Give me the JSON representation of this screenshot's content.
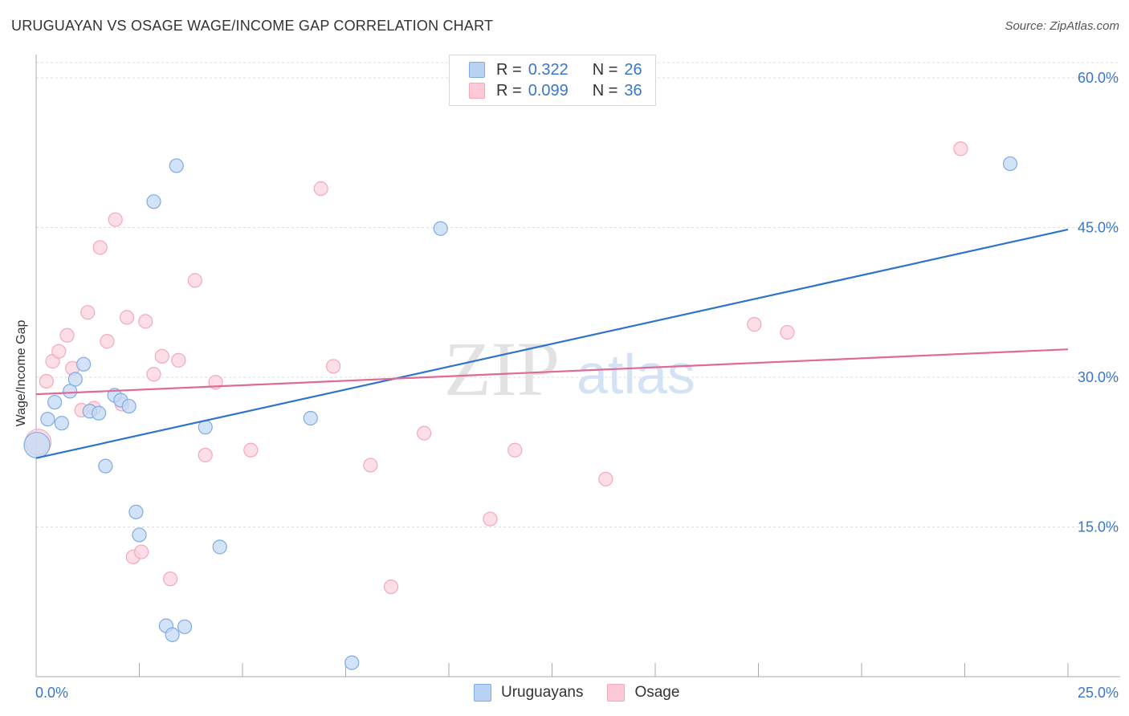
{
  "header": {
    "title": "URUGUAYAN VS OSAGE WAGE/INCOME GAP CORRELATION CHART",
    "source": "Source: ZipAtlas.com"
  },
  "watermark": {
    "zip": "ZIP",
    "atlas": "atlas"
  },
  "legend": {
    "rows": [
      {
        "r_label": "R =",
        "r_value": "0.322",
        "n_label": "N =",
        "n_value": "26",
        "color": "#b8d2f4"
      },
      {
        "r_label": "R =",
        "r_value": "0.099",
        "n_label": "N =",
        "n_value": "36",
        "color": "#fcc9d6"
      }
    ]
  },
  "chart_data": {
    "type": "scatter",
    "title": "URUGUAYAN VS OSAGE WAGE/INCOME GAP CORRELATION CHART",
    "xlabel": "",
    "ylabel": "Wage/Income Gap",
    "xlim": [
      0,
      25
    ],
    "ylim": [
      0,
      60
    ],
    "x_tick_labels": [
      "0.0%",
      "25.0%"
    ],
    "y_ticks": [
      15,
      30,
      45,
      60
    ],
    "y_tick_labels": [
      "15.0%",
      "30.0%",
      "45.0%",
      "60.0%"
    ],
    "grid": true,
    "series": [
      {
        "name": "Uruguayans",
        "color": "#7fabe3",
        "fill": "#c3d9f6",
        "line_color": "#2e73cc",
        "trend": {
          "x": [
            0,
            25
          ],
          "y": [
            21.9,
            44.8
          ]
        },
        "points": [
          {
            "x": 0.02,
            "y": 23.2,
            "big": true
          },
          {
            "x": 0.28,
            "y": 25.8
          },
          {
            "x": 0.45,
            "y": 27.5
          },
          {
            "x": 0.62,
            "y": 25.4
          },
          {
            "x": 0.82,
            "y": 28.6
          },
          {
            "x": 0.95,
            "y": 29.8
          },
          {
            "x": 1.15,
            "y": 31.3
          },
          {
            "x": 1.3,
            "y": 26.6
          },
          {
            "x": 1.52,
            "y": 26.4
          },
          {
            "x": 1.68,
            "y": 21.1
          },
          {
            "x": 1.9,
            "y": 28.2
          },
          {
            "x": 2.05,
            "y": 27.7
          },
          {
            "x": 2.25,
            "y": 27.1
          },
          {
            "x": 2.42,
            "y": 16.5
          },
          {
            "x": 2.5,
            "y": 14.2
          },
          {
            "x": 2.85,
            "y": 47.6
          },
          {
            "x": 3.15,
            "y": 5.1
          },
          {
            "x": 3.3,
            "y": 4.2
          },
          {
            "x": 3.4,
            "y": 51.2
          },
          {
            "x": 3.6,
            "y": 5.0
          },
          {
            "x": 4.1,
            "y": 25.0
          },
          {
            "x": 4.45,
            "y": 13.0
          },
          {
            "x": 6.65,
            "y": 25.9
          },
          {
            "x": 7.65,
            "y": 1.4
          },
          {
            "x": 9.8,
            "y": 44.9
          },
          {
            "x": 23.6,
            "y": 51.4
          }
        ]
      },
      {
        "name": "Osage",
        "color": "#f4a8bc",
        "fill": "#fbd3de",
        "line_color": "#e06a92",
        "trend": {
          "x": [
            0,
            25
          ],
          "y": [
            28.3,
            32.8
          ]
        },
        "points": [
          {
            "x": 0.05,
            "y": 23.5,
            "big": true
          },
          {
            "x": 0.25,
            "y": 29.6
          },
          {
            "x": 0.4,
            "y": 31.6
          },
          {
            "x": 0.55,
            "y": 32.6
          },
          {
            "x": 0.75,
            "y": 34.2
          },
          {
            "x": 0.88,
            "y": 30.9
          },
          {
            "x": 1.1,
            "y": 26.7
          },
          {
            "x": 1.25,
            "y": 36.5
          },
          {
            "x": 1.4,
            "y": 26.9
          },
          {
            "x": 1.55,
            "y": 43.0
          },
          {
            "x": 1.72,
            "y": 33.6
          },
          {
            "x": 1.92,
            "y": 45.8
          },
          {
            "x": 2.08,
            "y": 27.3
          },
          {
            "x": 2.2,
            "y": 36.0
          },
          {
            "x": 2.35,
            "y": 12.0
          },
          {
            "x": 2.55,
            "y": 12.5
          },
          {
            "x": 2.65,
            "y": 35.6
          },
          {
            "x": 2.85,
            "y": 30.3
          },
          {
            "x": 3.05,
            "y": 32.1
          },
          {
            "x": 3.25,
            "y": 9.8
          },
          {
            "x": 3.45,
            "y": 31.7
          },
          {
            "x": 3.85,
            "y": 39.7
          },
          {
            "x": 4.1,
            "y": 22.2
          },
          {
            "x": 4.35,
            "y": 29.5
          },
          {
            "x": 5.2,
            "y": 22.7
          },
          {
            "x": 6.9,
            "y": 48.9
          },
          {
            "x": 7.2,
            "y": 31.1
          },
          {
            "x": 8.1,
            "y": 21.2
          },
          {
            "x": 8.6,
            "y": 9.0
          },
          {
            "x": 9.4,
            "y": 24.4
          },
          {
            "x": 11.0,
            "y": 15.8
          },
          {
            "x": 11.6,
            "y": 22.7
          },
          {
            "x": 13.8,
            "y": 19.8
          },
          {
            "x": 17.4,
            "y": 35.3
          },
          {
            "x": 18.2,
            "y": 34.5
          },
          {
            "x": 22.4,
            "y": 52.9
          }
        ]
      }
    ]
  },
  "bottom_legend": {
    "items": [
      {
        "label": "Uruguayans",
        "color": "#b8d2f4"
      },
      {
        "label": "Osage",
        "color": "#fcc9d6"
      }
    ]
  }
}
